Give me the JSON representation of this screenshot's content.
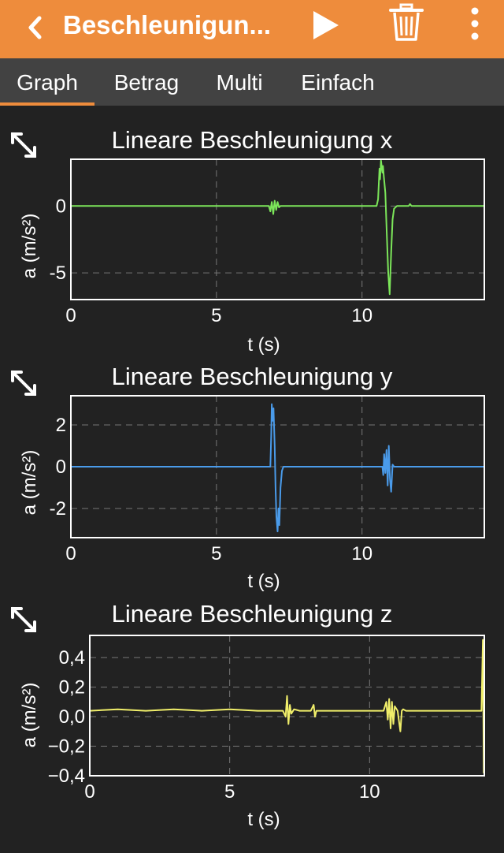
{
  "header": {
    "title": "Beschleunigun...",
    "icons": {
      "back": "chevron-left-icon",
      "play": "play-icon",
      "delete": "trash-icon",
      "menu": "more-vertical-icon"
    },
    "accent": "#EE8C3C"
  },
  "tabs": [
    {
      "label": "Graph",
      "active": true
    },
    {
      "label": "Betrag",
      "active": false
    },
    {
      "label": "Multi",
      "active": false
    },
    {
      "label": "Einfach",
      "active": false
    }
  ],
  "plots": [
    {
      "title": "Lineare Beschleunigung x",
      "xlabel": "t (s)",
      "ylabel": "a (m/s²)",
      "color": "#7CE65A"
    },
    {
      "title": "Lineare Beschleunigung y",
      "xlabel": "t (s)",
      "ylabel": "a (m/s²)",
      "color": "#4A9BEA"
    },
    {
      "title": "Lineare Beschleunigung z",
      "xlabel": "t (s)",
      "ylabel": "a (m/s²)",
      "color": "#F0EE6A"
    }
  ],
  "chart_data": [
    {
      "type": "line",
      "title": "Lineare Beschleunigung x",
      "xlabel": "t (s)",
      "ylabel": "a (m/s²)",
      "xlim": [
        0,
        14.2
      ],
      "ylim": [
        -7,
        3.5
      ],
      "xticks": [
        {
          "v": 0,
          "label": "0"
        },
        {
          "v": 5,
          "label": "5"
        },
        {
          "v": 10,
          "label": "10"
        }
      ],
      "yticks": [
        {
          "v": 0,
          "label": "0"
        },
        {
          "v": -5,
          "label": "-5"
        }
      ],
      "grid": true,
      "series": [
        {
          "color": "#7CE65A",
          "x": [
            0,
            6.8,
            6.85,
            6.9,
            6.95,
            7.0,
            7.05,
            7.1,
            7.15,
            7.2,
            7.25,
            10.5,
            10.55,
            10.6,
            10.62,
            10.65,
            10.7,
            10.72,
            10.75,
            10.8,
            10.85,
            10.9,
            10.95,
            11.0,
            11.05,
            11.1,
            11.2,
            11.6,
            11.65,
            11.7,
            14.2
          ],
          "y": [
            0,
            0,
            -0.4,
            0.3,
            -0.6,
            0.4,
            -0.3,
            0.3,
            -0.1,
            0,
            0,
            0,
            0.5,
            2.8,
            2.0,
            3.4,
            2.5,
            3.0,
            2.2,
            1.0,
            -2.0,
            -5.0,
            -6.6,
            -3.5,
            -1.0,
            -0.2,
            0,
            0,
            0.15,
            0,
            0
          ]
        }
      ]
    },
    {
      "type": "line",
      "title": "Lineare Beschleunigung y",
      "xlabel": "t (s)",
      "ylabel": "a (m/s²)",
      "xlim": [
        0,
        14.2
      ],
      "ylim": [
        -3.4,
        3.4
      ],
      "xticks": [
        {
          "v": 0,
          "label": "0"
        },
        {
          "v": 5,
          "label": "5"
        },
        {
          "v": 10,
          "label": "10"
        }
      ],
      "yticks": [
        {
          "v": 2,
          "label": "2"
        },
        {
          "v": 0,
          "label": "0"
        },
        {
          "v": -2,
          "label": "-2"
        }
      ],
      "grid": true,
      "series": [
        {
          "color": "#4A9BEA",
          "x": [
            0,
            6.85,
            6.88,
            6.9,
            6.93,
            6.96,
            7.0,
            7.03,
            7.06,
            7.1,
            7.13,
            7.16,
            7.2,
            7.25,
            7.3,
            10.7,
            10.73,
            10.76,
            10.8,
            10.84,
            10.88,
            10.92,
            10.96,
            11.0,
            11.05,
            11.1,
            14.2
          ],
          "y": [
            0,
            0,
            1.5,
            3.0,
            2.2,
            2.8,
            1.0,
            -1.0,
            -2.4,
            -3.1,
            -2.0,
            -2.8,
            -1.0,
            -0.2,
            0,
            0,
            -0.4,
            0.6,
            -0.3,
            0.8,
            -0.9,
            1.0,
            -0.6,
            -1.2,
            0.1,
            0,
            0
          ]
        }
      ]
    },
    {
      "type": "line",
      "title": "Lineare Beschleunigung z",
      "xlabel": "t (s)",
      "ylabel": "a (m/s²)",
      "xlim": [
        0,
        14.1
      ],
      "ylim": [
        -0.4,
        0.55
      ],
      "xticks": [
        {
          "v": 0,
          "label": "0"
        },
        {
          "v": 5,
          "label": "5"
        },
        {
          "v": 10,
          "label": "10"
        }
      ],
      "yticks": [
        {
          "v": 0.4,
          "label": "0,4"
        },
        {
          "v": 0.2,
          "label": "0,2"
        },
        {
          "v": 0,
          "label": "0,0"
        },
        {
          "v": -0.2,
          "label": "−0,2"
        },
        {
          "v": -0.4,
          "label": "−0,4"
        }
      ],
      "grid": true,
      "series": [
        {
          "color": "#F0EE6A",
          "x": [
            0,
            1.0,
            2.0,
            3.0,
            4.0,
            5.0,
            6.0,
            6.9,
            7.0,
            7.05,
            7.1,
            7.15,
            7.2,
            7.3,
            7.5,
            7.9,
            8.0,
            8.05,
            8.1,
            9.0,
            10.0,
            10.5,
            10.6,
            10.65,
            10.7,
            10.75,
            10.8,
            10.85,
            10.9,
            11.0,
            11.1,
            11.15,
            11.2,
            11.3,
            12.0,
            13.0,
            14.0,
            14.05,
            14.08,
            14.1
          ],
          "y": [
            0.04,
            0.05,
            0.04,
            0.05,
            0.04,
            0.05,
            0.04,
            0.04,
            0.0,
            0.14,
            -0.05,
            0.08,
            0.02,
            0.05,
            0.04,
            0.04,
            0.08,
            0.0,
            0.04,
            0.04,
            0.04,
            0.04,
            0.1,
            -0.02,
            0.12,
            -0.08,
            0.1,
            -0.05,
            0.07,
            0.04,
            -0.1,
            0.04,
            0.05,
            0.04,
            0.04,
            0.04,
            0.04,
            0.52,
            -0.38,
            0.04
          ]
        }
      ]
    }
  ]
}
